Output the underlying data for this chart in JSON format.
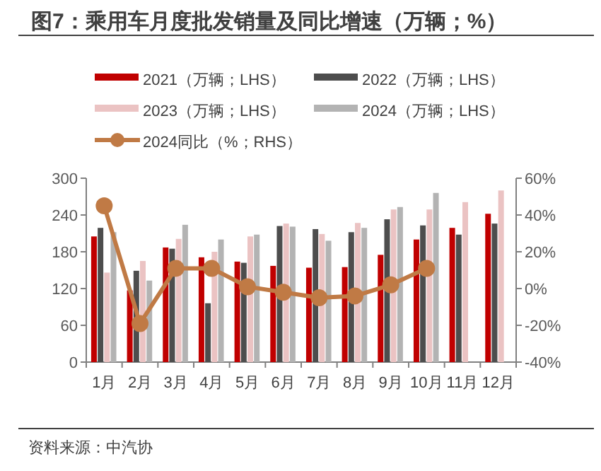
{
  "chart_data": {
    "type": "bar",
    "title": "图7：乘用车月度批发销量及同比增速（万辆；%）",
    "categories": [
      "1月",
      "2月",
      "3月",
      "4月",
      "5月",
      "6月",
      "7月",
      "8月",
      "9月",
      "10月",
      "11月",
      "12月"
    ],
    "series": [
      {
        "name": "2021（万辆；LHS）",
        "color": "#c00000",
        "values": [
          205,
          117,
          187,
          171,
          164,
          157,
          154,
          155,
          175,
          200,
          219,
          242
        ]
      },
      {
        "name": "2022（万辆；LHS）",
        "color": "#4d4d4d",
        "values": [
          219,
          149,
          185,
          96,
          162,
          222,
          217,
          212,
          233,
          223,
          208,
          226
        ]
      },
      {
        "name": "2023（万辆；LHS）",
        "color": "#ebc3c3",
        "values": [
          146,
          165,
          201,
          180,
          205,
          226,
          209,
          227,
          249,
          249,
          261,
          280
        ]
      },
      {
        "name": "2024（万辆；LHS）",
        "color": "#b3b3b3",
        "values": [
          212,
          133,
          224,
          200,
          208,
          221,
          198,
          219,
          253,
          276,
          null,
          null
        ]
      },
      {
        "name": "2024同比（%；RHS）",
        "color": "#c07a45",
        "type": "line",
        "axis": "y2",
        "values": [
          45,
          -19,
          11,
          11,
          1,
          -2,
          -5,
          -4,
          2,
          11,
          null,
          null
        ]
      }
    ],
    "ylim": [
      0,
      300
    ],
    "yticks": [
      0,
      60,
      120,
      180,
      240,
      300
    ],
    "y2lim": [
      -40,
      60
    ],
    "y2ticks": [
      {
        "value": -40,
        "label": "-40%"
      },
      {
        "value": -20,
        "label": "-20%"
      },
      {
        "value": 0,
        "label": "0%"
      },
      {
        "value": 20,
        "label": "20%"
      },
      {
        "value": 40,
        "label": "40%"
      },
      {
        "value": 60,
        "label": "60%"
      }
    ],
    "legend": "top",
    "marker": "circle",
    "annotations": [
      "资料来源：中汽协"
    ]
  }
}
